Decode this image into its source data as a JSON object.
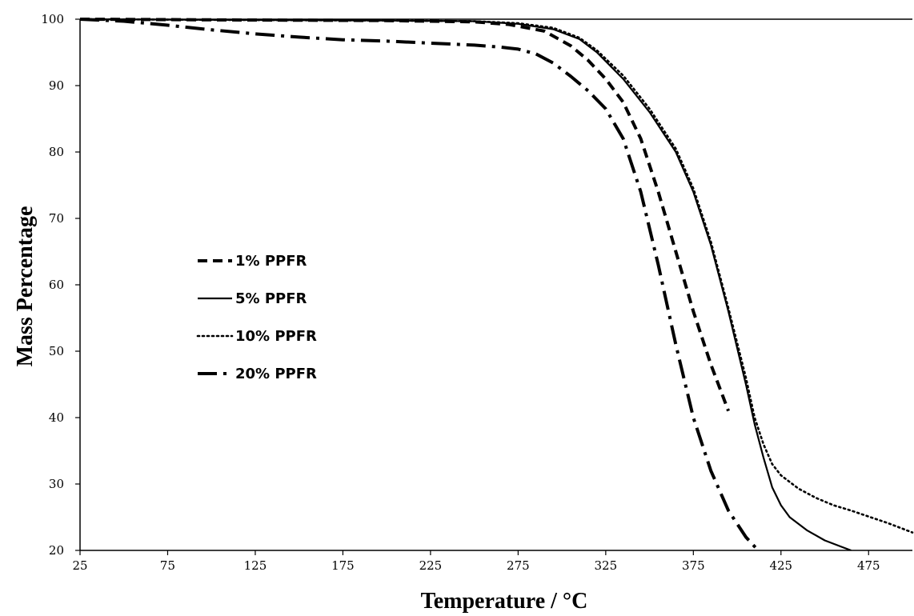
{
  "chart_data": {
    "type": "line",
    "title": "",
    "xlabel": "Temperature / °C",
    "ylabel": "Mass Percentage",
    "xlim": [
      25,
      500
    ],
    "ylim": [
      20,
      100
    ],
    "xticks": [
      "25",
      "75",
      "125",
      "175",
      "225",
      "275",
      "325",
      "375",
      "425",
      "475"
    ],
    "yticks": [
      "20",
      "30",
      "40",
      "50",
      "60",
      "70",
      "80",
      "90",
      "100"
    ],
    "grid": false,
    "legend_position": "left-middle",
    "series": [
      {
        "name": "1% PPFR",
        "style": "dashed",
        "color": "#000000",
        "x": [
          25,
          100,
          200,
          250,
          270,
          290,
          305,
          315,
          325,
          335,
          345,
          355,
          365,
          375,
          385,
          395
        ],
        "y": [
          100,
          99.9,
          99.8,
          99.6,
          99.2,
          98.2,
          96,
          93.8,
          91,
          87.5,
          82,
          74,
          65,
          56,
          48,
          41
        ]
      },
      {
        "name": "5% PPFR",
        "style": "solid",
        "color": "#000000",
        "x": [
          25,
          100,
          200,
          250,
          275,
          295,
          310,
          320,
          335,
          350,
          365,
          375,
          385,
          395,
          405,
          410,
          415,
          420,
          425,
          430,
          440,
          450,
          460,
          465
        ],
        "y": [
          100,
          99.9,
          99.8,
          99.7,
          99.3,
          98.5,
          97,
          95,
          91,
          86,
          80,
          74,
          66,
          56,
          45,
          39,
          34,
          29.5,
          26.8,
          25,
          23,
          21.5,
          20.5,
          20
        ]
      },
      {
        "name": "10% PPFR",
        "style": "dotted",
        "color": "#000000",
        "x": [
          25,
          100,
          200,
          250,
          275,
          295,
          310,
          320,
          335,
          350,
          365,
          375,
          385,
          395,
          405,
          410,
          415,
          420,
          425,
          435,
          445,
          455,
          465,
          475,
          485,
          495,
          500
        ],
        "y": [
          100,
          99.9,
          99.8,
          99.7,
          99.4,
          98.7,
          97.2,
          95.3,
          91.5,
          86.5,
          80.5,
          74.5,
          66.5,
          56.5,
          46,
          40,
          36,
          33,
          31.3,
          29.3,
          27.9,
          26.8,
          26,
          25.1,
          24.2,
          23.2,
          22.7
        ]
      },
      {
        "name": "20% PPFR",
        "style": "dash-dot",
        "color": "#000000",
        "x": [
          25,
          50,
          75,
          100,
          125,
          150,
          175,
          200,
          225,
          250,
          265,
          275,
          285,
          295,
          305,
          315,
          325,
          335,
          345,
          355,
          365,
          375,
          385,
          395,
          405,
          412
        ],
        "y": [
          100,
          99.7,
          99.1,
          98.4,
          97.8,
          97.3,
          96.9,
          96.7,
          96.4,
          96.1,
          95.8,
          95.5,
          94.8,
          93.4,
          91.4,
          89.2,
          86.5,
          82,
          74,
          63,
          51,
          40,
          32,
          26,
          22,
          20
        ]
      }
    ]
  }
}
